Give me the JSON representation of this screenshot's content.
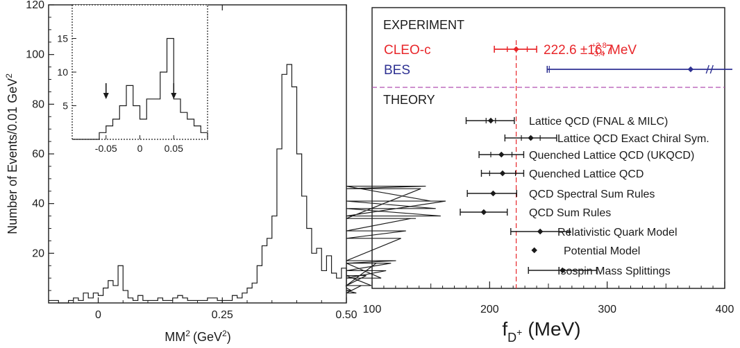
{
  "chart_data": [
    {
      "type": "histogram",
      "xlabel": "MM",
      "xlabel_sup": "2",
      "xlabel_unit": "(GeV",
      "xlabel_unit_sup": "2",
      "xlabel_close": ")",
      "ylabel": "Number of Events/0.01 GeV",
      "ylabel_sup": "2",
      "xlim": [
        -0.1,
        0.5
      ],
      "ylim": [
        0,
        120
      ],
      "xticks": [
        {
          "v": 0,
          "label": "0"
        },
        {
          "v": 0.25,
          "label": "0.25"
        },
        {
          "v": 0.5,
          "label": "0.50"
        }
      ],
      "yticks": [
        {
          "v": 20,
          "label": "20"
        },
        {
          "v": 40,
          "label": "40"
        },
        {
          "v": 60,
          "label": "60"
        },
        {
          "v": 80,
          "label": "80"
        },
        {
          "v": 100,
          "label": "100"
        },
        {
          "v": 120,
          "label": "120"
        }
      ],
      "bin_width": 0.01,
      "bin_start": -0.1,
      "values": [
        1,
        1,
        0,
        0,
        1,
        2,
        1,
        4,
        2,
        4,
        3,
        6,
        9,
        7,
        15,
        5,
        2,
        1,
        3,
        1,
        1,
        1,
        2,
        1,
        1,
        2,
        3,
        2,
        1,
        1,
        1,
        1,
        2,
        2,
        1,
        1,
        1,
        3,
        2,
        4,
        6,
        8,
        15,
        23,
        26,
        35,
        62,
        92,
        96,
        87,
        60,
        43,
        30,
        20,
        22,
        13,
        19,
        12,
        10,
        14,
        6,
        5,
        4,
        7,
        11,
        7,
        16,
        10,
        13,
        16,
        17,
        26,
        29,
        34,
        34,
        46,
        47,
        41,
        38,
        35,
        41
      ],
      "inset": {
        "xticks": [
          {
            "v": -0.05,
            "label": "-0.05"
          },
          {
            "v": 0,
            "label": "0"
          },
          {
            "v": 0.05,
            "label": "0.05"
          }
        ],
        "yticks": [
          {
            "v": 5,
            "label": "5"
          },
          {
            "v": 10,
            "label": "10"
          },
          {
            "v": 15,
            "label": "15"
          }
        ],
        "xlim": [
          -0.1,
          0.1
        ],
        "ylim": [
          0,
          20
        ],
        "bin_width": 0.01,
        "bin_start": -0.1,
        "values": [
          0,
          0,
          0,
          0,
          1,
          2,
          3,
          5,
          8,
          5,
          3,
          6,
          6,
          10,
          15,
          6,
          4,
          3,
          2,
          1,
          0
        ],
        "arrows_at": [
          -0.05,
          0.05
        ]
      }
    },
    {
      "type": "error-bar",
      "xlabel": "f",
      "xlabel_sub": "D",
      "xlabel_subsup": "+",
      "xlabel_unit": "(MeV)",
      "xlim": [
        100,
        400
      ],
      "xticks": [
        {
          "v": 100,
          "label": "100"
        },
        {
          "v": 200,
          "label": "200"
        },
        {
          "v": 300,
          "label": "300"
        },
        {
          "v": 400,
          "label": "400"
        }
      ],
      "experiment_header": "EXPERIMENT",
      "theory_header": "THEORY",
      "reference_line": 222.6,
      "experiment": [
        {
          "name": "CLEO-c",
          "value": 222.6,
          "stat": [
            215,
            232
          ],
          "total": [
            204,
            240
          ],
          "color": "#e8262a",
          "result": "222.6 ±16.7",
          "syst_up": "+2.8",
          "syst_down": "-3.4",
          "unit": "MeV"
        },
        {
          "name": "BES",
          "value": 371,
          "total": [
            249,
            1000
          ],
          "color": "#2e3192"
        }
      ],
      "theory": [
        {
          "name": "Lattice QCD (FNAL & MILC)",
          "value": 201,
          "stat": [
            197,
            205
          ],
          "total": [
            180,
            221
          ]
        },
        {
          "name": "Lattice QCD Exact Chiral Sym.",
          "value": 235,
          "stat": [
            227,
            243
          ],
          "total": [
            213,
            257
          ]
        },
        {
          "name": "Quenched Lattice QCD (UKQCD)",
          "value": 210,
          "stat": [
            201,
            219
          ],
          "total": [
            191,
            229
          ]
        },
        {
          "name": "Quenched Lattice QCD",
          "value": 211,
          "stat": [
            200,
            222
          ],
          "total": [
            193,
            229
          ]
        },
        {
          "name": "QCD Spectral Sum Rules",
          "value": 203,
          "stat": [
            203,
            203
          ],
          "total": [
            181,
            223
          ]
        },
        {
          "name": "QCD Sum Rules",
          "value": 195,
          "stat": [
            195,
            195
          ],
          "total": [
            175,
            215
          ]
        },
        {
          "name": "Relativistic Quark Model",
          "value": 243,
          "stat": [
            243,
            243
          ],
          "total": [
            218,
            268
          ]
        },
        {
          "name": "Potential Model",
          "value": 238,
          "stat": [
            238,
            238
          ],
          "total": [
            238,
            238
          ]
        },
        {
          "name": "Isospin Mass Splittings",
          "value": 262,
          "stat": [
            262,
            262
          ],
          "total": [
            233,
            291
          ]
        }
      ],
      "colors": {
        "reference": "#e8262a",
        "divider": "#b04fb0",
        "theory": "#1a1a1a"
      }
    }
  ]
}
